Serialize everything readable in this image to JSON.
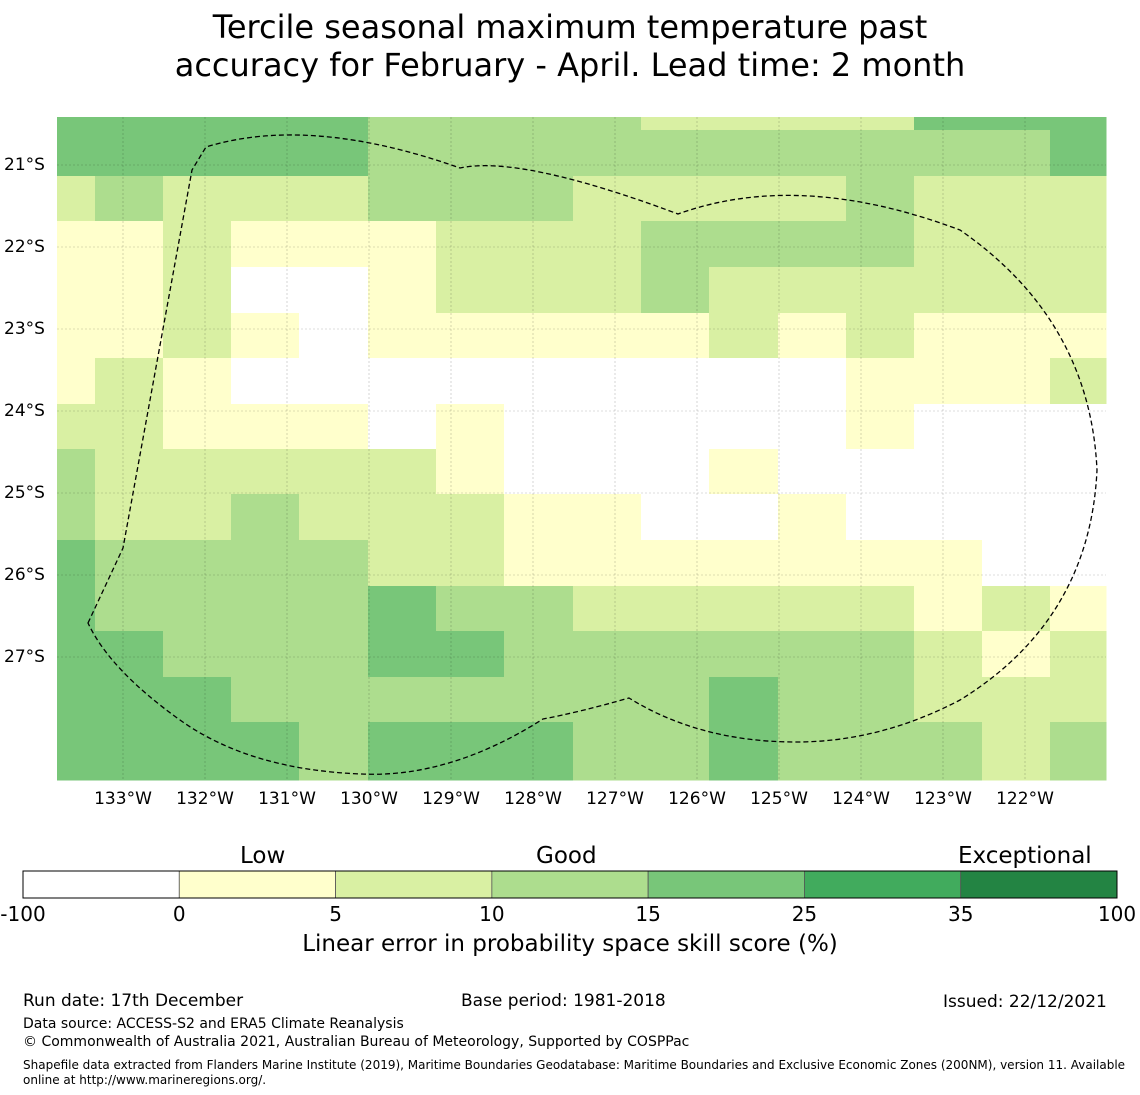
{
  "title": {
    "line1": "Tercile seasonal maximum temperature past",
    "line2": "accuracy for February - April. Lead time: 2 month"
  },
  "map": {
    "lon_labels": [
      "133°W",
      "132°W",
      "131°W",
      "130°W",
      "129°W",
      "128°W",
      "127°W",
      "126°W",
      "125°W",
      "124°W",
      "123°W",
      "122°W"
    ],
    "lat_labels": [
      "21°S",
      "22°S",
      "23°S",
      "24°S",
      "25°S",
      "26°S",
      "27°S"
    ],
    "grid_columns": 16,
    "grid_rows": 15,
    "cell_categories": [
      [
        4,
        4,
        4,
        4,
        4,
        3,
        3,
        3,
        3,
        2,
        2,
        2,
        2,
        4,
        4,
        4
      ],
      [
        4,
        4,
        4,
        4,
        4,
        3,
        3,
        3,
        3,
        3,
        3,
        3,
        3,
        3,
        3,
        4
      ],
      [
        2,
        3,
        2,
        2,
        2,
        3,
        3,
        3,
        2,
        2,
        2,
        2,
        3,
        2,
        2,
        2
      ],
      [
        1,
        1,
        2,
        1,
        1,
        1,
        2,
        2,
        2,
        3,
        3,
        3,
        3,
        2,
        2,
        2
      ],
      [
        1,
        1,
        2,
        0,
        0,
        1,
        2,
        2,
        2,
        3,
        2,
        2,
        2,
        2,
        2,
        2
      ],
      [
        1,
        1,
        2,
        1,
        0,
        1,
        1,
        1,
        1,
        1,
        2,
        1,
        2,
        1,
        1,
        1
      ],
      [
        1,
        2,
        1,
        0,
        0,
        0,
        0,
        0,
        0,
        0,
        0,
        0,
        1,
        1,
        1,
        2
      ],
      [
        2,
        2,
        1,
        1,
        1,
        0,
        1,
        0,
        0,
        0,
        0,
        0,
        1,
        0,
        0,
        0
      ],
      [
        3,
        2,
        2,
        2,
        2,
        2,
        1,
        0,
        0,
        0,
        1,
        0,
        0,
        0,
        0,
        0
      ],
      [
        3,
        2,
        2,
        3,
        2,
        2,
        2,
        1,
        1,
        0,
        0,
        1,
        0,
        0,
        0,
        0
      ],
      [
        4,
        3,
        3,
        3,
        3,
        2,
        2,
        1,
        1,
        1,
        1,
        1,
        1,
        1,
        0,
        0
      ],
      [
        4,
        3,
        3,
        3,
        3,
        4,
        3,
        3,
        2,
        2,
        2,
        2,
        2,
        1,
        2,
        1
      ],
      [
        4,
        4,
        3,
        3,
        3,
        4,
        4,
        3,
        3,
        3,
        3,
        3,
        3,
        2,
        1,
        2
      ],
      [
        4,
        4,
        4,
        3,
        3,
        3,
        3,
        3,
        3,
        3,
        4,
        3,
        3,
        2,
        2,
        2
      ],
      [
        4,
        4,
        4,
        4,
        3,
        4,
        4,
        4,
        3,
        3,
        4,
        3,
        3,
        3,
        2,
        3
      ]
    ],
    "region_shape": "eez-boundary-dashed"
  },
  "legend": {
    "category_labels": [
      "Low",
      "Good",
      "Exceptional"
    ],
    "bins": [
      {
        "from": "-100",
        "to": "0",
        "color": "#ffffff"
      },
      {
        "from": "0",
        "to": "5",
        "color": "#ffffcc"
      },
      {
        "from": "5",
        "to": "10",
        "color": "#d9f0a3"
      },
      {
        "from": "10",
        "to": "15",
        "color": "#addd8e"
      },
      {
        "from": "15",
        "to": "25",
        "color": "#78c679"
      },
      {
        "from": "25",
        "to": "35",
        "color": "#41ab5d"
      },
      {
        "from": "35",
        "to": "100",
        "color": "#238443"
      }
    ],
    "tick_labels": [
      "-100",
      "0",
      "5",
      "10",
      "15",
      "25",
      "35",
      "100"
    ],
    "colorbar_label": "Linear error in probability space skill score (%)"
  },
  "footer": {
    "run_date": "Run date: 17th December",
    "base_period": "Base period: 1981-2018",
    "issued": "Issued: 22/12/2021",
    "data_source": "Data source: ACCESS-S2 and ERA5 Climate Reanalysis",
    "copyright": "© Commonwealth of Australia 2021, Australian Bureau of Meteorology, Supported by COSPPac",
    "shapefile": "Shapefile data extracted from Flanders Marine Institute (2019), Maritime Boundaries Geodatabase: Maritime Boundaries and Exclusive Economic Zones (200NM), version 11. Available online at http://www.marineregions.org/."
  }
}
